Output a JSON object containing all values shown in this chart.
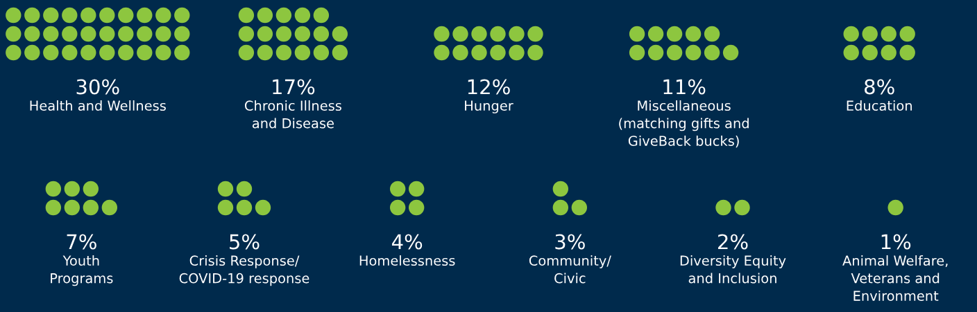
{
  "chart_data": {
    "type": "other",
    "categories": [
      "Health and Wellness",
      "Chronic Illness\nand Disease",
      "Hunger",
      "Miscellaneous\n(matching gifts and\nGiveBack bucks)",
      "Education",
      "Youth\nPrograms",
      "Crisis Response/\nCOVID-19 response",
      "Homelessness",
      "Community/\nCivic",
      "Diversity Equity\nand Inclusion",
      "Animal Welfare,\nVeterans and\nEnvironment"
    ],
    "values": [
      30,
      17,
      12,
      11,
      8,
      7,
      5,
      4,
      3,
      2,
      1
    ],
    "value_labels": [
      "30%",
      "17%",
      "12%",
      "11%",
      "8%",
      "7%",
      "5%",
      "4%",
      "3%",
      "2%",
      "1%"
    ],
    "color": "#8dc63f"
  }
}
